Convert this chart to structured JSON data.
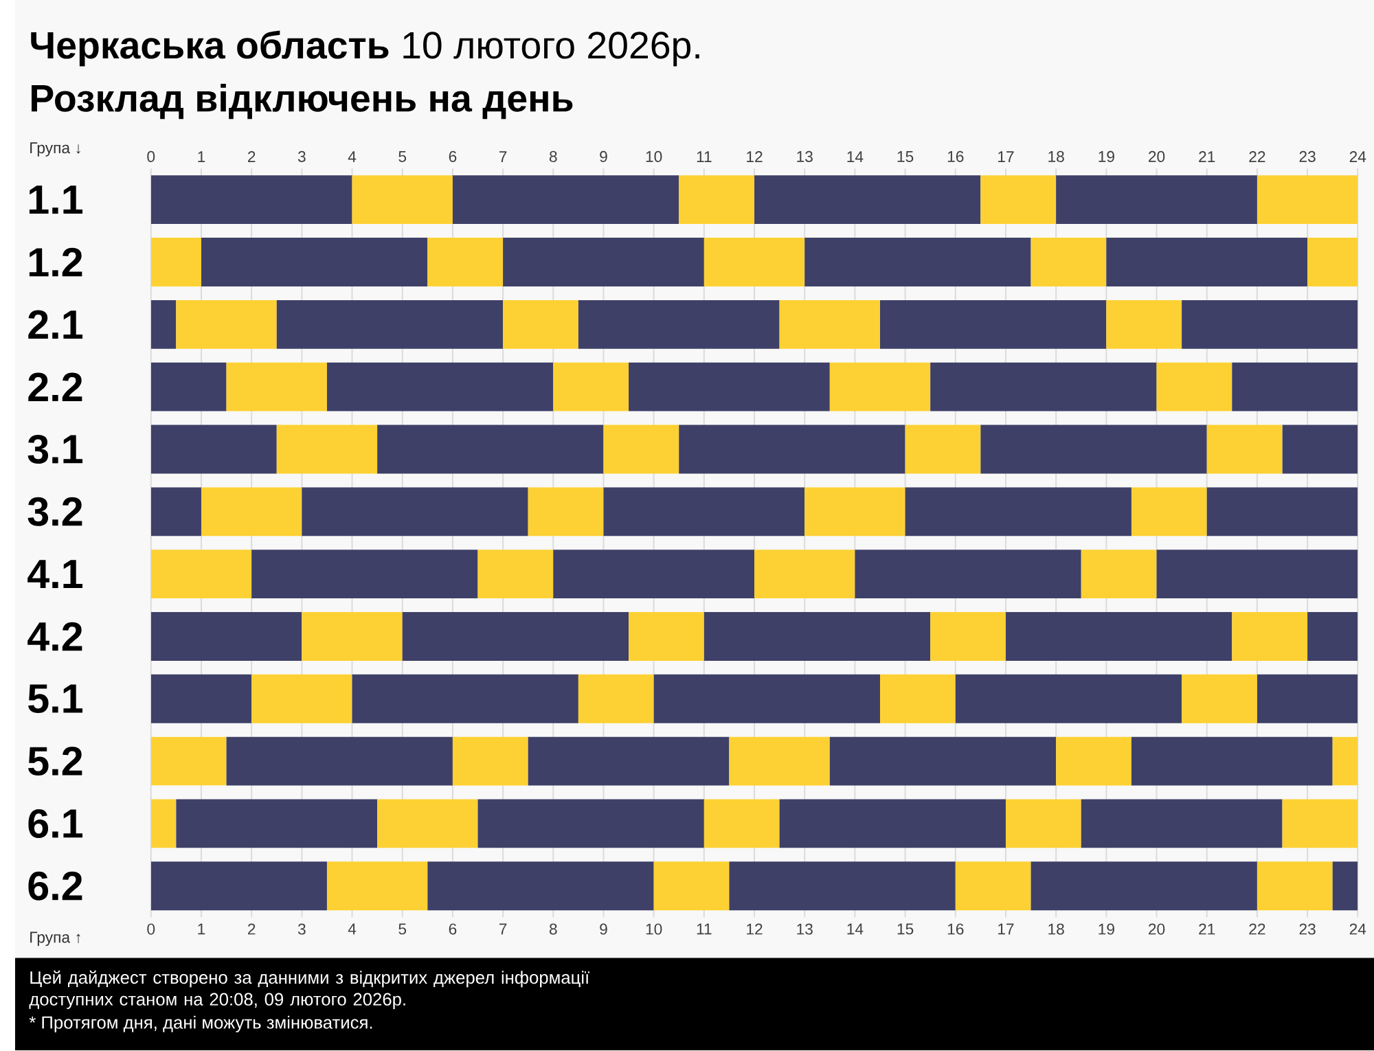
{
  "chart_data": {
    "type": "bar",
    "orientation": "horizontal",
    "stacked": true,
    "title": "**Черкаська область** 10 лютого 2026р.",
    "subtitle": "Розклад відключень на день",
    "categories": [
      "1.1",
      "1.2",
      "2.1",
      "2.2",
      "3.1",
      "3.2",
      "4.1",
      "4.2",
      "5.1",
      "5.2",
      "6.1",
      "6.2"
    ],
    "series": [
      {
        "values": [
          4,
          1,
          0.5,
          1.5,
          2.5,
          1,
          2,
          3,
          2,
          1.5,
          0.5,
          3.5
        ],
        "colors": [
          "#3e4068",
          "#fdd133",
          "#3e4068",
          "#3e4068",
          "#3e4068",
          "#3e4068",
          "#fdd133",
          "#3e4068",
          "#3e4068",
          "#fdd133",
          "#fdd133",
          "#3e4068"
        ]
      },
      {
        "values": [
          2,
          4.5,
          2,
          2,
          2,
          2,
          4.5,
          2,
          2,
          4.5,
          4,
          2
        ],
        "colors": [
          "#fdd133",
          "#3e4068",
          "#fdd133",
          "#fdd133",
          "#fdd133",
          "#fdd133",
          "#3e4068",
          "#fdd133",
          "#fdd133",
          "#3e4068",
          "#3e4068",
          "#fdd133"
        ]
      },
      {
        "values": [
          4.5,
          1.5,
          4.5,
          4.5,
          4.5,
          4.5,
          1.5,
          4.5,
          4.5,
          1.5,
          2,
          4.5
        ],
        "colors": [
          "#3e4068",
          "#fdd133",
          "#3e4068",
          "#3e4068",
          "#3e4068",
          "#3e4068",
          "#fdd133",
          "#3e4068",
          "#3e4068",
          "#fdd133",
          "#fdd133",
          "#3e4068"
        ]
      },
      {
        "values": [
          1.5,
          4,
          1.5,
          1.5,
          1.5,
          1.5,
          4,
          1.5,
          1.5,
          4,
          4.5,
          1.5
        ],
        "colors": [
          "#fdd133",
          "#3e4068",
          "#fdd133",
          "#fdd133",
          "#fdd133",
          "#fdd133",
          "#3e4068",
          "#fdd133",
          "#fdd133",
          "#3e4068",
          "#3e4068",
          "#fdd133"
        ]
      },
      {
        "values": [
          4.5,
          2,
          4,
          4,
          4.5,
          4,
          2,
          4.5,
          4.5,
          2,
          1.5,
          4.5
        ],
        "colors": [
          "#3e4068",
          "#fdd133",
          "#3e4068",
          "#3e4068",
          "#3e4068",
          "#3e4068",
          "#fdd133",
          "#3e4068",
          "#3e4068",
          "#fdd133",
          "#fdd133",
          "#3e4068"
        ]
      },
      {
        "values": [
          1.5,
          4.5,
          2,
          2,
          1.5,
          2,
          4.5,
          1.5,
          1.5,
          4.5,
          4.5,
          1.5
        ],
        "colors": [
          "#fdd133",
          "#3e4068",
          "#fdd133",
          "#fdd133",
          "#fdd133",
          "#fdd133",
          "#3e4068",
          "#fdd133",
          "#fdd133",
          "#3e4068",
          "#3e4068",
          "#fdd133"
        ]
      },
      {
        "values": [
          4,
          1.5,
          4.5,
          4.5,
          4.5,
          4.5,
          1.5,
          4.5,
          4.5,
          1.5,
          1.5,
          4.5
        ],
        "colors": [
          "#3e4068",
          "#fdd133",
          "#3e4068",
          "#3e4068",
          "#3e4068",
          "#3e4068",
          "#fdd133",
          "#3e4068",
          "#3e4068",
          "#fdd133",
          "#fdd133",
          "#3e4068"
        ]
      },
      {
        "values": [
          2,
          4,
          1.5,
          1.5,
          1.5,
          1.5,
          4,
          1.5,
          1.5,
          4,
          4,
          1.5
        ],
        "colors": [
          "#fdd133",
          "#3e4068",
          "#fdd133",
          "#fdd133",
          "#fdd133",
          "#fdd133",
          "#3e4068",
          "#fdd133",
          "#fdd133",
          "#3e4068",
          "#3e4068",
          "#fdd133"
        ]
      },
      {
        "values": [
          null,
          1,
          3.5,
          2.5,
          1.5,
          3,
          null,
          1,
          2,
          0.5,
          1.5,
          0.5
        ],
        "colors": [
          null,
          "#fdd133",
          "#3e4068",
          "#3e4068",
          "#3e4068",
          "#3e4068",
          null,
          "#3e4068",
          "#3e4068",
          "#fdd133",
          "#fdd133",
          "#3e4068"
        ]
      }
    ],
    "xlim": [
      0,
      24
    ],
    "xticks": [
      0,
      1,
      2,
      3,
      4,
      5,
      6,
      7,
      8,
      9,
      10,
      11,
      12,
      13,
      14,
      15,
      16,
      17,
      18,
      19,
      20,
      21,
      22,
      23,
      24
    ],
    "x2lim": [
      0,
      24
    ],
    "x2ticks": [
      0,
      1,
      2,
      3,
      4,
      5,
      6,
      7,
      8,
      9,
      10,
      11,
      12,
      13,
      14,
      15,
      16,
      17,
      18,
      19,
      20,
      21,
      22,
      23,
      24
    ],
    "grid": "x",
    "annotations": [
      "Група ↓",
      "Група ↑",
      "Цей дайджест створено за данними з відкритих джерел інформації доступних станом на 20:08, 09 лютого 2026р.",
      "* Протягом дня, дані можуть змінюватися."
    ]
  }
}
